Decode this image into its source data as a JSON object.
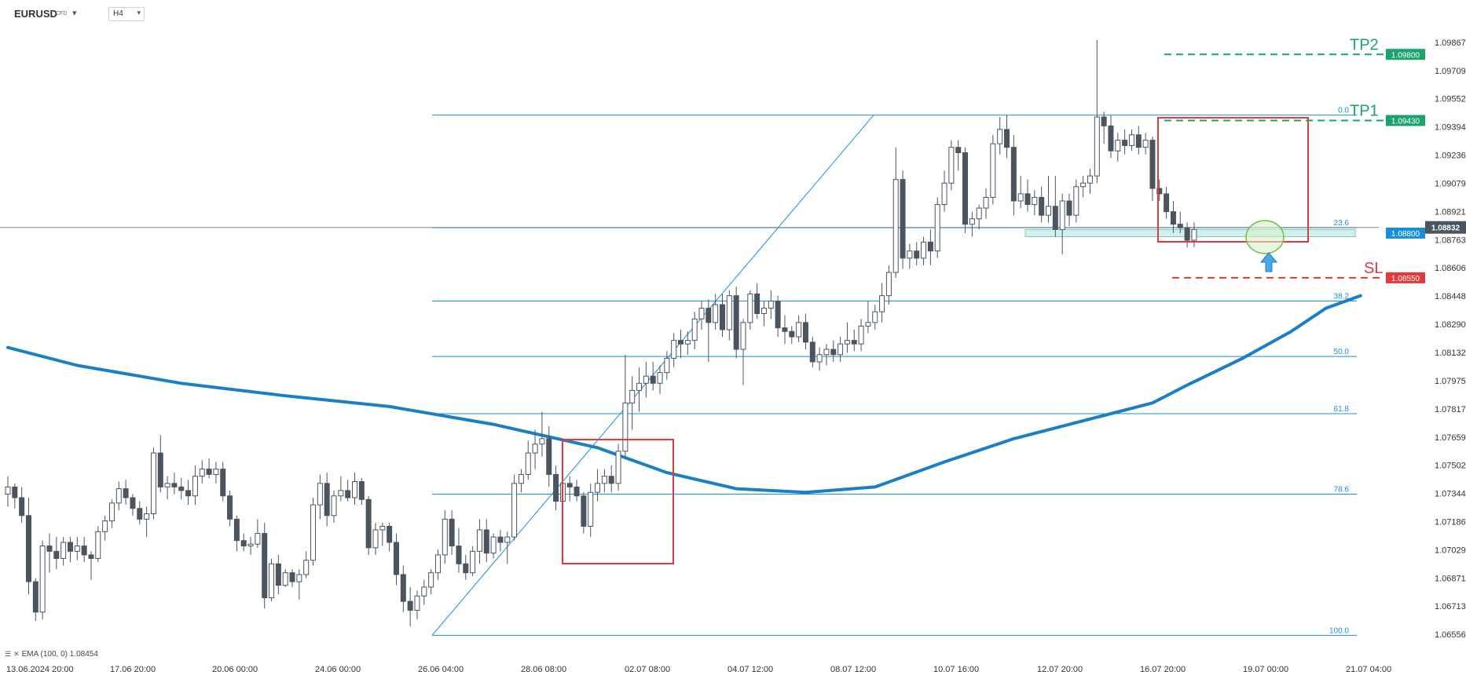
{
  "header": {
    "symbol": "EURUSD",
    "symbol_type": "CFD",
    "timeframe": "H4"
  },
  "legend": {
    "text": "EMA (100, 0) 1.08454"
  },
  "colors": {
    "up_candle": "#ffffff",
    "down_candle": "#4a5560",
    "ema": "#1b7fc4",
    "fib": "#1b8fd6",
    "tp": "#1aa36b",
    "sl": "#e03a3a",
    "box": "#e03a3a",
    "price_tag": "#1b8fd6",
    "current_price_tag": "#4a5560"
  },
  "chart_data": {
    "type": "candlestick",
    "symbol": "EURUSD",
    "timeframe": "H4",
    "y_axis": {
      "ticks": [
        "1.09867",
        "1.09709",
        "1.09552",
        "1.09394",
        "1.09236",
        "1.09079",
        "1.08921",
        "1.08763",
        "1.08606",
        "1.08448",
        "1.08290",
        "1.08132",
        "1.07975",
        "1.07817",
        "1.07659",
        "1.07502",
        "1.07344",
        "1.07186",
        "1.07029",
        "1.06871",
        "1.06713",
        "1.06556"
      ],
      "range": [
        1.0652,
        1.0991
      ]
    },
    "x_axis": {
      "ticks": [
        "13.06.2024  20:00",
        "17.06  20:00",
        "20.06  00:00",
        "24.06  00:00",
        "26.06  04:00",
        "28.06  08:00",
        "02.07  08:00",
        "04.07  12:00",
        "08.07  12:00",
        "10.07  16:00",
        "12.07  20:00",
        "16.07  20:00",
        "19.07  00:00",
        "21.07  04:00"
      ],
      "bars_total": 195
    },
    "ohlc": [
      [
        1.0734,
        1.0744,
        1.0727,
        1.0738
      ],
      [
        1.0738,
        1.074,
        1.0726,
        1.0732
      ],
      [
        1.0732,
        1.0738,
        1.0718,
        1.0722
      ],
      [
        1.0722,
        1.0732,
        1.0678,
        1.0685
      ],
      [
        1.0685,
        1.0687,
        1.0663,
        1.0668
      ],
      [
        1.0668,
        1.0708,
        1.0664,
        1.0705
      ],
      [
        1.0705,
        1.0712,
        1.069,
        1.0702
      ],
      [
        1.0702,
        1.071,
        1.0692,
        1.0698
      ],
      [
        1.0698,
        1.071,
        1.0694,
        1.0707
      ],
      [
        1.0707,
        1.071,
        1.0696,
        1.0702
      ],
      [
        1.0702,
        1.071,
        1.0697,
        1.0705
      ],
      [
        1.0705,
        1.071,
        1.0696,
        1.07
      ],
      [
        1.07,
        1.0702,
        1.0686,
        1.0698
      ],
      [
        1.0698,
        1.0716,
        1.0696,
        1.0713
      ],
      [
        1.0713,
        1.0722,
        1.0708,
        1.0719
      ],
      [
        1.0719,
        1.0731,
        1.0715,
        1.0729
      ],
      [
        1.0729,
        1.0741,
        1.0725,
        1.0737
      ],
      [
        1.0737,
        1.0742,
        1.0728,
        1.0732
      ],
      [
        1.0732,
        1.0734,
        1.0722,
        1.0726
      ],
      [
        1.0726,
        1.073,
        1.0717,
        1.072
      ],
      [
        1.072,
        1.0727,
        1.071,
        1.0723
      ],
      [
        1.0723,
        1.076,
        1.072,
        1.0757
      ],
      [
        1.0757,
        1.0767,
        1.0735,
        1.0738
      ],
      [
        1.0738,
        1.0744,
        1.0731,
        1.074
      ],
      [
        1.074,
        1.0746,
        1.0734,
        1.0738
      ],
      [
        1.0738,
        1.0743,
        1.0731,
        1.0736
      ],
      [
        1.0736,
        1.0742,
        1.0728,
        1.0733
      ],
      [
        1.0733,
        1.075,
        1.0728,
        1.0744
      ],
      [
        1.0744,
        1.0753,
        1.074,
        1.0748
      ],
      [
        1.0748,
        1.0754,
        1.0743,
        1.0745
      ],
      [
        1.0745,
        1.0752,
        1.074,
        1.0748
      ],
      [
        1.0748,
        1.0752,
        1.073,
        1.0733
      ],
      [
        1.0733,
        1.0736,
        1.0716,
        1.072
      ],
      [
        1.072,
        1.0722,
        1.0702,
        1.0708
      ],
      [
        1.0708,
        1.0712,
        1.0702,
        1.0705
      ],
      [
        1.0705,
        1.071,
        1.07,
        1.0706
      ],
      [
        1.0706,
        1.072,
        1.0704,
        1.0712
      ],
      [
        1.0712,
        1.0718,
        1.067,
        1.0676
      ],
      [
        1.0676,
        1.0698,
        1.0674,
        1.0695
      ],
      [
        1.0695,
        1.07,
        1.0678,
        1.0683
      ],
      [
        1.0683,
        1.0692,
        1.0682,
        1.069
      ],
      [
        1.069,
        1.0692,
        1.0682,
        1.0685
      ],
      [
        1.0685,
        1.0692,
        1.0675,
        1.0689
      ],
      [
        1.0689,
        1.0702,
        1.0687,
        1.0697
      ],
      [
        1.0697,
        1.0732,
        1.0694,
        1.0728
      ],
      [
        1.0728,
        1.0745,
        1.072,
        1.074
      ],
      [
        1.074,
        1.0746,
        1.0716,
        1.0722
      ],
      [
        1.0722,
        1.0736,
        1.0718,
        1.0733
      ],
      [
        1.0733,
        1.0744,
        1.073,
        1.0736
      ],
      [
        1.0736,
        1.0742,
        1.073,
        1.0732
      ],
      [
        1.0732,
        1.0746,
        1.0728,
        1.0741
      ],
      [
        1.0741,
        1.0743,
        1.0728,
        1.0731
      ],
      [
        1.0731,
        1.0733,
        1.07,
        1.0704
      ],
      [
        1.0704,
        1.0718,
        1.07,
        1.0714
      ],
      [
        1.0714,
        1.0718,
        1.0705,
        1.0716
      ],
      [
        1.0716,
        1.0718,
        1.0702,
        1.0707
      ],
      [
        1.0707,
        1.0712,
        1.0683,
        1.0689
      ],
      [
        1.0689,
        1.0694,
        1.0668,
        1.0674
      ],
      [
        1.0674,
        1.0682,
        1.066,
        1.0669
      ],
      [
        1.0669,
        1.068,
        1.0664,
        1.0677
      ],
      [
        1.0677,
        1.0686,
        1.0672,
        1.0682
      ],
      [
        1.0682,
        1.0692,
        1.0678,
        1.069
      ],
      [
        1.069,
        1.0703,
        1.0686,
        1.07
      ],
      [
        1.07,
        1.0725,
        1.0695,
        1.072
      ],
      [
        1.072,
        1.0725,
        1.07,
        1.0705
      ],
      [
        1.0705,
        1.0715,
        1.069,
        1.0695
      ],
      [
        1.0695,
        1.07,
        1.0686,
        1.069
      ],
      [
        1.069,
        1.0705,
        1.0688,
        1.0702
      ],
      [
        1.0702,
        1.072,
        1.0695,
        1.0714
      ],
      [
        1.0714,
        1.072,
        1.0696,
        1.0701
      ],
      [
        1.0701,
        1.0712,
        1.0698,
        1.071
      ],
      [
        1.071,
        1.0714,
        1.0702,
        1.0707
      ],
      [
        1.0707,
        1.0713,
        1.0695,
        1.071
      ],
      [
        1.071,
        1.0745,
        1.0708,
        1.074
      ],
      [
        1.074,
        1.0748,
        1.0735,
        1.0745
      ],
      [
        1.0745,
        1.0764,
        1.0742,
        1.0757
      ],
      [
        1.0757,
        1.077,
        1.0748,
        1.0762
      ],
      [
        1.0762,
        1.078,
        1.0755,
        1.0765
      ],
      [
        1.0765,
        1.0772,
        1.0738,
        1.0745
      ],
      [
        1.0745,
        1.075,
        1.0725,
        1.073
      ],
      [
        1.073,
        1.0745,
        1.0722,
        1.074
      ],
      [
        1.074,
        1.0744,
        1.073,
        1.0738
      ],
      [
        1.0738,
        1.0742,
        1.073,
        1.0733
      ],
      [
        1.0733,
        1.0735,
        1.0712,
        1.0716
      ],
      [
        1.0716,
        1.074,
        1.071,
        1.0735
      ],
      [
        1.0735,
        1.0748,
        1.073,
        1.074
      ],
      [
        1.074,
        1.0748,
        1.0735,
        1.0744
      ],
      [
        1.0744,
        1.075,
        1.0735,
        1.074
      ],
      [
        1.074,
        1.0762,
        1.0736,
        1.0758
      ],
      [
        1.0758,
        1.0812,
        1.0755,
        1.0785
      ],
      [
        1.0785,
        1.08,
        1.077,
        1.0792
      ],
      [
        1.0792,
        1.0805,
        1.078,
        1.0796
      ],
      [
        1.0796,
        1.0808,
        1.0788,
        1.08
      ],
      [
        1.08,
        1.0808,
        1.0792,
        1.0796
      ],
      [
        1.0796,
        1.0806,
        1.079,
        1.0802
      ],
      [
        1.0802,
        1.0814,
        1.0798,
        1.081
      ],
      [
        1.081,
        1.0824,
        1.0805,
        1.082
      ],
      [
        1.082,
        1.0826,
        1.081,
        1.0818
      ],
      [
        1.0818,
        1.0825,
        1.0812,
        1.082
      ],
      [
        1.082,
        1.0836,
        1.0815,
        1.0832
      ],
      [
        1.0832,
        1.0842,
        1.0826,
        1.0838
      ],
      [
        1.0838,
        1.0843,
        1.0808,
        1.083
      ],
      [
        1.083,
        1.0846,
        1.0826,
        1.084
      ],
      [
        1.084,
        1.0846,
        1.0822,
        1.0826
      ],
      [
        1.0826,
        1.0848,
        1.082,
        1.0845
      ],
      [
        1.0845,
        1.085,
        1.081,
        1.0815
      ],
      [
        1.0815,
        1.0832,
        1.0795,
        1.083
      ],
      [
        1.083,
        1.0848,
        1.0826,
        1.0846
      ],
      [
        1.0846,
        1.0852,
        1.0832,
        1.0835
      ],
      [
        1.0835,
        1.0842,
        1.0828,
        1.0838
      ],
      [
        1.0838,
        1.0848,
        1.0832,
        1.0842
      ],
      [
        1.0842,
        1.0845,
        1.0822,
        1.0827
      ],
      [
        1.0827,
        1.0834,
        1.0818,
        1.0825
      ],
      [
        1.0825,
        1.0828,
        1.0818,
        1.0822
      ],
      [
        1.0822,
        1.0834,
        1.0819,
        1.083
      ],
      [
        1.083,
        1.0835,
        1.0815,
        1.0819
      ],
      [
        1.0819,
        1.0822,
        1.0805,
        1.0808
      ],
      [
        1.0808,
        1.0816,
        1.0803,
        1.0812
      ],
      [
        1.0812,
        1.0818,
        1.0806,
        1.0815
      ],
      [
        1.0815,
        1.082,
        1.0808,
        1.0812
      ],
      [
        1.0812,
        1.0822,
        1.0808,
        1.0818
      ],
      [
        1.0818,
        1.083,
        1.0813,
        1.082
      ],
      [
        1.082,
        1.0826,
        1.0814,
        1.0818
      ],
      [
        1.0818,
        1.0832,
        1.0814,
        1.0828
      ],
      [
        1.0828,
        1.0842,
        1.0824,
        1.083
      ],
      [
        1.083,
        1.084,
        1.0826,
        1.0836
      ],
      [
        1.0836,
        1.0852,
        1.083,
        1.0845
      ],
      [
        1.0845,
        1.0862,
        1.084,
        1.0858
      ],
      [
        1.0858,
        1.0928,
        1.0855,
        1.091
      ],
      [
        1.091,
        1.0915,
        1.086,
        1.0866
      ],
      [
        1.0866,
        1.0874,
        1.086,
        1.087
      ],
      [
        1.087,
        1.0875,
        1.0862,
        1.0866
      ],
      [
        1.0866,
        1.0878,
        1.0862,
        1.0875
      ],
      [
        1.0875,
        1.0882,
        1.0862,
        1.087
      ],
      [
        1.087,
        1.09,
        1.0866,
        1.0896
      ],
      [
        1.0896,
        1.0915,
        1.0892,
        1.0908
      ],
      [
        1.0908,
        1.0932,
        1.0904,
        1.0928
      ],
      [
        1.0928,
        1.0932,
        1.0915,
        1.0925
      ],
      [
        1.0925,
        1.0928,
        1.088,
        1.0885
      ],
      [
        1.0885,
        1.0892,
        1.0878,
        1.0888
      ],
      [
        1.0888,
        1.0896,
        1.0882,
        1.0894
      ],
      [
        1.0894,
        1.0905,
        1.0888,
        1.09
      ],
      [
        1.09,
        1.0935,
        1.0896,
        1.093
      ],
      [
        1.093,
        1.0945,
        1.0924,
        1.0938
      ],
      [
        1.0938,
        1.0946,
        1.0922,
        1.0928
      ],
      [
        1.0928,
        1.0935,
        1.089,
        1.0898
      ],
      [
        1.0898,
        1.0912,
        1.0894,
        1.0902
      ],
      [
        1.0902,
        1.091,
        1.0892,
        1.0896
      ],
      [
        1.0896,
        1.0904,
        1.089,
        1.09
      ],
      [
        1.09,
        1.0906,
        1.0886,
        1.089
      ],
      [
        1.089,
        1.0912,
        1.0886,
        1.0895
      ],
      [
        1.0895,
        1.0912,
        1.0878,
        1.0882
      ],
      [
        1.0882,
        1.0902,
        1.0868,
        1.0898
      ],
      [
        1.0898,
        1.0902,
        1.0884,
        1.089
      ],
      [
        1.089,
        1.091,
        1.0886,
        1.0906
      ],
      [
        1.0906,
        1.0912,
        1.09,
        1.0908
      ],
      [
        1.0908,
        1.0916,
        1.0902,
        1.0912
      ],
      [
        1.0912,
        1.0988,
        1.0908,
        1.0945
      ],
      [
        1.0945,
        1.0948,
        1.093,
        1.094
      ],
      [
        1.094,
        1.0946,
        1.0922,
        1.0926
      ],
      [
        1.0926,
        1.0936,
        1.092,
        1.0932
      ],
      [
        1.0932,
        1.0938,
        1.0924,
        1.0929
      ],
      [
        1.0929,
        1.0938,
        1.0926,
        1.0935
      ],
      [
        1.0935,
        1.094,
        1.0924,
        1.0928
      ],
      [
        1.0928,
        1.0936,
        1.0924,
        1.0932
      ],
      [
        1.0932,
        1.0934,
        1.0898,
        1.0905
      ],
      [
        1.0905,
        1.091,
        1.0898,
        1.0902
      ],
      [
        1.0902,
        1.0906,
        1.0888,
        1.0892
      ],
      [
        1.0892,
        1.0898,
        1.088,
        1.0885
      ],
      [
        1.0885,
        1.0892,
        1.088,
        1.0883
      ],
      [
        1.0883,
        1.0886,
        1.0872,
        1.0876
      ],
      [
        1.0876,
        1.0886,
        1.0872,
        1.0882
      ]
    ],
    "ema": {
      "name": "EMA (100, 0)",
      "points": [
        [
          0,
          1.0816
        ],
        [
          10,
          1.0806
        ],
        [
          25,
          1.0796
        ],
        [
          40,
          1.0789
        ],
        [
          55,
          1.0783
        ],
        [
          70,
          1.0773
        ],
        [
          85,
          1.076
        ],
        [
          95,
          1.0746
        ],
        [
          105,
          1.0737
        ],
        [
          115,
          1.0735
        ],
        [
          125,
          1.0738
        ],
        [
          135,
          1.0752
        ],
        [
          145,
          1.0765
        ],
        [
          155,
          1.0775
        ],
        [
          165,
          1.0785
        ],
        [
          170,
          1.0795
        ],
        [
          178,
          1.081
        ],
        [
          185,
          1.0825
        ],
        [
          190,
          1.0838
        ],
        [
          195,
          1.0845
        ]
      ]
    },
    "fibonacci": {
      "levels": [
        {
          "label": "0.0",
          "price": 1.0946
        },
        {
          "label": "23.6",
          "price": 1.0883
        },
        {
          "label": "38.2",
          "price": 1.0842
        },
        {
          "label": "50.0",
          "price": 1.0811
        },
        {
          "label": "61.8",
          "price": 1.0779
        },
        {
          "label": "78.6",
          "price": 1.0734
        },
        {
          "label": "100.0",
          "price": 1.0655
        }
      ]
    },
    "levels": [
      {
        "label": "TP2",
        "price": 1.098,
        "tag": "1.09800",
        "color": "#1aa36b"
      },
      {
        "label": "TP1",
        "price": 1.0943,
        "tag": "1.09430",
        "color": "#1aa36b"
      },
      {
        "label": "SL",
        "price": 1.0855,
        "tag": "1.08550",
        "color": "#e03a3a"
      }
    ],
    "entry": {
      "price": 1.088,
      "tag": "1.08800"
    },
    "current_price": {
      "price": 1.08832,
      "tag": "1.08832"
    }
  }
}
